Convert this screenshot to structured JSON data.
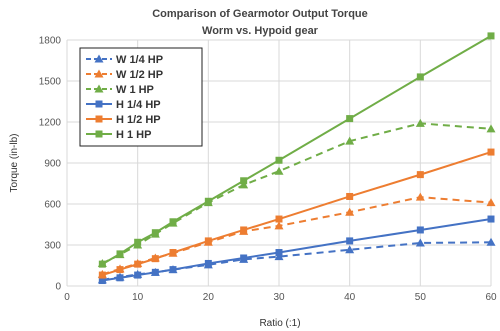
{
  "chart_data": {
    "type": "line",
    "title": "Comparison of Gearmotor Output Torque",
    "subtitle": "Worm vs. Hypoid gear",
    "xlabel": "Ratio (:1)",
    "ylabel": "Torque (in-lb)",
    "xlim": [
      0,
      60
    ],
    "ylim": [
      0,
      1800
    ],
    "xticks": [
      0,
      10,
      20,
      30,
      40,
      50,
      60
    ],
    "yticks": [
      0,
      300,
      600,
      900,
      1200,
      1500,
      1800
    ],
    "grid": true,
    "legend_position": "top-left",
    "series": [
      {
        "name": "W 1/4 HP",
        "color": "#4472c4",
        "marker": "triangle",
        "dashed": true,
        "x": [
          5,
          7.5,
          10,
          12.5,
          15,
          20,
          25,
          30,
          40,
          50,
          60
        ],
        "y": [
          45,
          65,
          85,
          100,
          120,
          155,
          195,
          215,
          265,
          315,
          320
        ]
      },
      {
        "name": "W 1/2 HP",
        "color": "#ed7d31",
        "marker": "triangle",
        "dashed": true,
        "x": [
          5,
          7.5,
          10,
          12.5,
          15,
          20,
          25,
          30,
          40,
          50,
          60
        ],
        "y": [
          85,
          125,
          165,
          205,
          240,
          320,
          400,
          440,
          540,
          650,
          610
        ]
      },
      {
        "name": "W 1 HP",
        "color": "#70ad47",
        "marker": "triangle",
        "dashed": true,
        "x": [
          5,
          7.5,
          10,
          12.5,
          15,
          20,
          25,
          30,
          40,
          50,
          60
        ],
        "y": [
          165,
          230,
          300,
          380,
          460,
          610,
          740,
          840,
          1060,
          1190,
          1150
        ]
      },
      {
        "name": "H 1/4 HP",
        "color": "#4472c4",
        "marker": "square",
        "dashed": false,
        "x": [
          5,
          7.5,
          10,
          12.5,
          15,
          20,
          25,
          30,
          40,
          50,
          60
        ],
        "y": [
          40,
          60,
          80,
          100,
          120,
          165,
          205,
          245,
          330,
          410,
          490
        ]
      },
      {
        "name": "H 1/2 HP",
        "color": "#ed7d31",
        "marker": "square",
        "dashed": false,
        "x": [
          5,
          7.5,
          10,
          12.5,
          15,
          20,
          25,
          30,
          40,
          50,
          60
        ],
        "y": [
          80,
          120,
          160,
          200,
          245,
          330,
          410,
          490,
          655,
          815,
          980
        ]
      },
      {
        "name": "H 1 HP",
        "color": "#70ad47",
        "marker": "square",
        "dashed": false,
        "x": [
          5,
          7.5,
          10,
          12.5,
          15,
          20,
          25,
          30,
          40,
          50,
          60
        ],
        "y": [
          160,
          235,
          320,
          390,
          470,
          620,
          770,
          920,
          1225,
          1530,
          1830
        ]
      }
    ]
  }
}
